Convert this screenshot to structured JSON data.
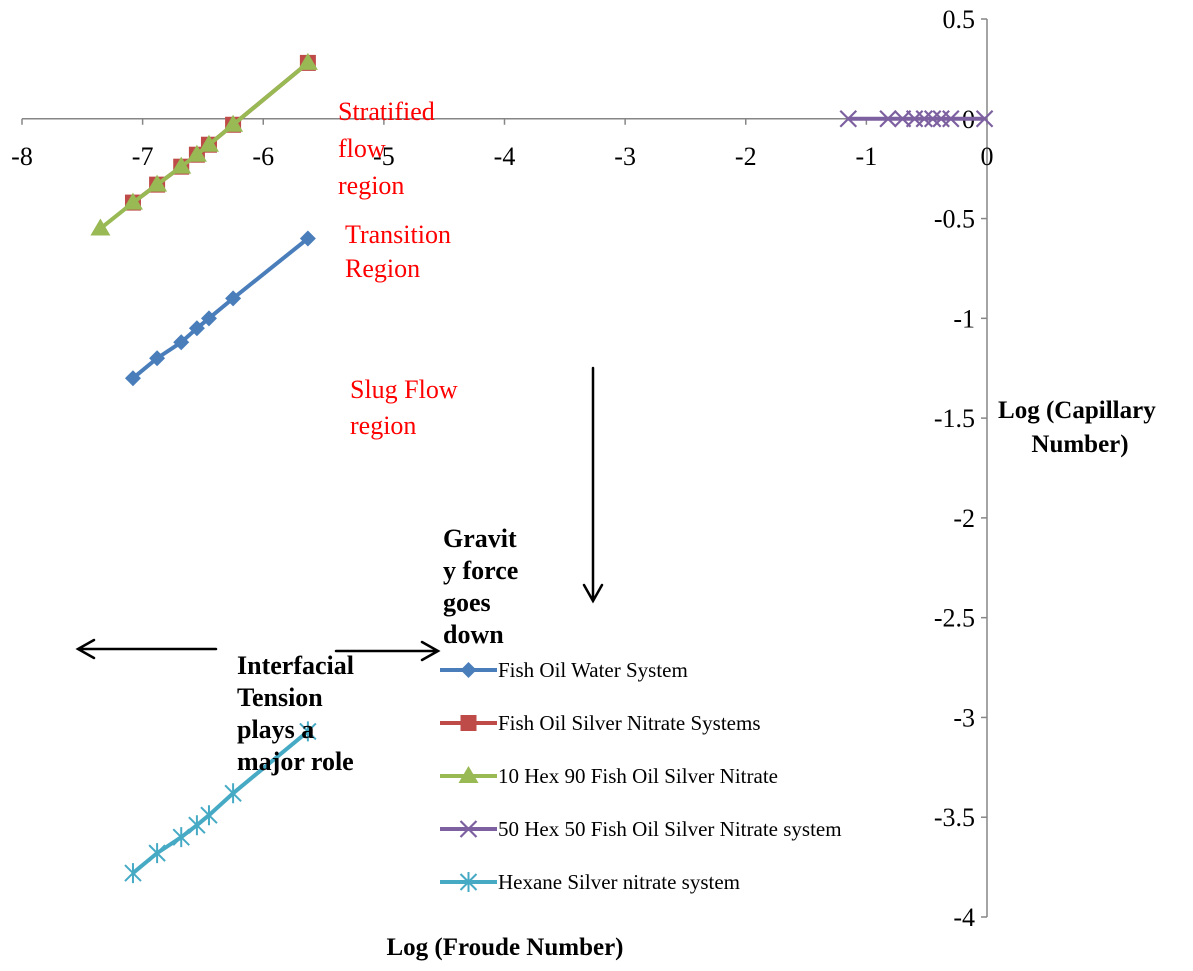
{
  "chart_data": {
    "type": "line",
    "xlabel": "Log (Froude Number)",
    "ylabel_lines": [
      "Log (Capillary",
      "Number)"
    ],
    "xlim": [
      -8,
      0
    ],
    "ylim": [
      -4,
      0.5
    ],
    "x_ticks": [
      "-8",
      "-7",
      "-6",
      "-5",
      "-4",
      "-3",
      "-2",
      "-1",
      "0"
    ],
    "y_ticks": [
      "0.5",
      "0",
      "-0.5",
      "-1",
      "-1.5",
      "-2",
      "-2.5",
      "-3",
      "-3.5",
      "-4"
    ],
    "series": [
      {
        "name": "Fish Oil Water System",
        "color": "#4a7ebb",
        "marker": "diamond",
        "x": [
          -7.08,
          -6.88,
          -6.68,
          -6.55,
          -6.45,
          -6.25,
          -5.63
        ],
        "y": [
          -1.3,
          -1.2,
          -1.12,
          -1.05,
          -1.0,
          -0.9,
          -0.6
        ]
      },
      {
        "name": "Fish Oil Silver Nitrate Systems",
        "color": "#be4b48",
        "marker": "square",
        "x": [
          -7.08,
          -6.88,
          -6.68,
          -6.55,
          -6.45,
          -6.25,
          -5.63
        ],
        "y": [
          -0.42,
          -0.33,
          -0.24,
          -0.18,
          -0.13,
          -0.03,
          0.28
        ]
      },
      {
        "name": "10 Hex 90 Fish Oil Silver Nitrate",
        "color": "#98b954",
        "marker": "triangle",
        "x": [
          -7.35,
          -7.08,
          -6.88,
          -6.68,
          -6.55,
          -6.45,
          -6.25,
          -5.63
        ],
        "y": [
          -0.55,
          -0.42,
          -0.33,
          -0.24,
          -0.18,
          -0.13,
          -0.03,
          0.28
        ]
      },
      {
        "name": "50 Hex 50 Fish Oil Silver Nitrate system",
        "color": "#7d60a0",
        "marker": "x",
        "x": [
          -1.15,
          -0.82,
          -0.7,
          -0.6,
          -0.52,
          -0.45,
          -0.38,
          -0.3,
          -0.02
        ],
        "y": [
          0,
          0,
          0,
          0,
          0,
          0,
          0,
          0,
          0
        ]
      },
      {
        "name": "Hexane Silver nitrate system",
        "color": "#46aac5",
        "marker": "star",
        "x": [
          -7.08,
          -6.88,
          -6.68,
          -6.55,
          -6.45,
          -6.25,
          -5.63
        ],
        "y": [
          -3.78,
          -3.68,
          -3.6,
          -3.54,
          -3.49,
          -3.38,
          -3.07
        ]
      }
    ],
    "annotations": [
      {
        "id": "stratified",
        "lines": [
          "Stratified",
          "flow",
          "region"
        ],
        "color": "#ff0000"
      },
      {
        "id": "transition",
        "lines": [
          "Transition",
          "Region"
        ],
        "color": "#ff0000"
      },
      {
        "id": "slug",
        "lines": [
          "Slug Flow",
          "region"
        ],
        "color": "#ff0000"
      },
      {
        "id": "gravity",
        "lines": [
          "Gravit",
          "y force",
          "goes",
          "down"
        ],
        "color": "#000000"
      },
      {
        "id": "interfacial",
        "lines": [
          "Interfacial",
          "Tension",
          "plays a",
          "major role"
        ],
        "color": "#000000"
      }
    ],
    "legend_position": "bottom-center",
    "grid": false
  }
}
